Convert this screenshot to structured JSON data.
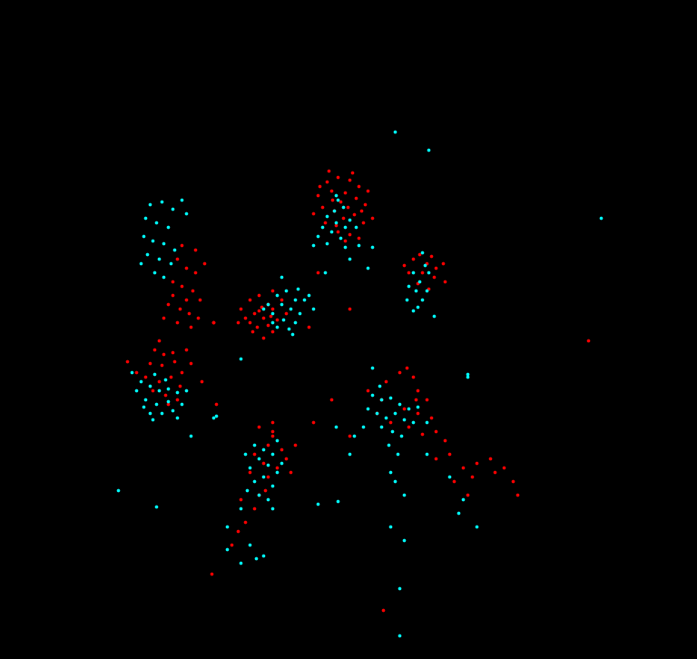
{
  "chart_data": {
    "type": "scatter",
    "tick_labels": false,
    "xlim": [
      0,
      768
    ],
    "ylim": [
      726,
      0
    ],
    "series": [
      {
        "color": "#ff0000",
        "marker": "o",
        "points": [
          [
            360,
            200
          ],
          [
            372,
            195
          ],
          [
            385,
            198
          ],
          [
            395,
            205
          ],
          [
            350,
            215
          ],
          [
            365,
            210
          ],
          [
            380,
            212
          ],
          [
            392,
            218
          ],
          [
            402,
            225
          ],
          [
            355,
            228
          ],
          [
            368,
            232
          ],
          [
            378,
            240
          ],
          [
            390,
            236
          ],
          [
            400,
            245
          ],
          [
            358,
            245
          ],
          [
            372,
            255
          ],
          [
            385,
            258
          ],
          [
            395,
            262
          ],
          [
            345,
            235
          ],
          [
            405,
            210
          ],
          [
            362,
            188
          ],
          [
            388,
            190
          ],
          [
            375,
            222
          ],
          [
            383,
            228
          ],
          [
            366,
            220
          ],
          [
            352,
            205
          ],
          [
            398,
            232
          ],
          [
            370,
            248
          ],
          [
            380,
            265
          ],
          [
            410,
            240
          ],
          [
            275,
            330
          ],
          [
            285,
            325
          ],
          [
            295,
            335
          ],
          [
            280,
            345
          ],
          [
            290,
            350
          ],
          [
            300,
            340
          ],
          [
            270,
            350
          ],
          [
            283,
            360
          ],
          [
            295,
            358
          ],
          [
            305,
            352
          ],
          [
            278,
            365
          ],
          [
            290,
            372
          ],
          [
            300,
            365
          ],
          [
            265,
            340
          ],
          [
            310,
            330
          ],
          [
            288,
            338
          ],
          [
            298,
            348
          ],
          [
            275,
            355
          ],
          [
            285,
            342
          ],
          [
            262,
            355
          ],
          [
            300,
            320
          ],
          [
            315,
            345
          ],
          [
            350,
            300
          ],
          [
            385,
            340
          ],
          [
            235,
            355
          ],
          [
            170,
            385
          ],
          [
            180,
            390
          ],
          [
            190,
            388
          ],
          [
            165,
            400
          ],
          [
            178,
            402
          ],
          [
            192,
            398
          ],
          [
            200,
            410
          ],
          [
            160,
            415
          ],
          [
            175,
            420
          ],
          [
            188,
            415
          ],
          [
            198,
            425
          ],
          [
            168,
            430
          ],
          [
            182,
            435
          ],
          [
            195,
            440
          ],
          [
            150,
            410
          ],
          [
            210,
            400
          ],
          [
            175,
            375
          ],
          [
            222,
            420
          ],
          [
            205,
            385
          ],
          [
            185,
            445
          ],
          [
            140,
            398
          ],
          [
            238,
            445
          ],
          [
            195,
            285
          ],
          [
            205,
            295
          ],
          [
            215,
            300
          ],
          [
            190,
            310
          ],
          [
            200,
            315
          ],
          [
            212,
            320
          ],
          [
            220,
            330
          ],
          [
            185,
            335
          ],
          [
            198,
            340
          ],
          [
            208,
            345
          ],
          [
            195,
            355
          ],
          [
            210,
            360
          ],
          [
            225,
            290
          ],
          [
            180,
            350
          ],
          [
            200,
            270
          ],
          [
            215,
            275
          ],
          [
            218,
            350
          ],
          [
            190,
            325
          ],
          [
            235,
            355
          ],
          [
            205,
            330
          ],
          [
            455,
            285
          ],
          [
            470,
            290
          ],
          [
            480,
            295
          ],
          [
            450,
            300
          ],
          [
            465,
            300
          ],
          [
            478,
            305
          ],
          [
            488,
            290
          ],
          [
            460,
            312
          ],
          [
            472,
            318
          ],
          [
            445,
            292
          ],
          [
            490,
            310
          ],
          [
            462,
            280
          ],
          [
            475,
            282
          ],
          [
            425,
            420
          ],
          [
            440,
            410
          ],
          [
            455,
            415
          ],
          [
            448,
            405
          ],
          [
            460,
            430
          ],
          [
            470,
            440
          ],
          [
            420,
            440
          ],
          [
            445,
            450
          ],
          [
            460,
            455
          ],
          [
            475,
            460
          ],
          [
            430,
            465
          ],
          [
            450,
            470
          ],
          [
            465,
            478
          ],
          [
            480,
            475
          ],
          [
            415,
            455
          ],
          [
            490,
            485
          ],
          [
            495,
            500
          ],
          [
            510,
            515
          ],
          [
            525,
            510
          ],
          [
            500,
            530
          ],
          [
            520,
            525
          ],
          [
            540,
            505
          ],
          [
            555,
            515
          ],
          [
            565,
            530
          ],
          [
            515,
            545
          ],
          [
            545,
            520
          ],
          [
            570,
            545
          ],
          [
            480,
            505
          ],
          [
            405,
            430
          ],
          [
            458,
            440
          ],
          [
            285,
            470
          ],
          [
            300,
            475
          ],
          [
            295,
            490
          ],
          [
            310,
            495
          ],
          [
            280,
            500
          ],
          [
            290,
            510
          ],
          [
            305,
            515
          ],
          [
            315,
            505
          ],
          [
            275,
            520
          ],
          [
            295,
            525
          ],
          [
            300,
            480
          ],
          [
            320,
            520
          ],
          [
            285,
            545
          ],
          [
            280,
            560
          ],
          [
            270,
            575
          ],
          [
            262,
            585
          ],
          [
            255,
            600
          ],
          [
            265,
            550
          ],
          [
            292,
            540
          ],
          [
            325,
            490
          ],
          [
            300,
            465
          ],
          [
            648,
            375
          ],
          [
            422,
            672
          ],
          [
            233,
            632
          ],
          [
            365,
            440
          ],
          [
            345,
            465
          ],
          [
            340,
            360
          ],
          [
            385,
            480
          ]
        ]
      },
      {
        "color": "#00ffff",
        "marker": "o",
        "points": [
          [
            360,
            238
          ],
          [
            370,
            245
          ],
          [
            380,
            250
          ],
          [
            365,
            255
          ],
          [
            375,
            262
          ],
          [
            385,
            242
          ],
          [
            355,
            250
          ],
          [
            392,
            250
          ],
          [
            368,
            232
          ],
          [
            378,
            228
          ],
          [
            372,
            220
          ],
          [
            350,
            260
          ],
          [
            395,
            270
          ],
          [
            360,
            268
          ],
          [
            380,
            272
          ],
          [
            410,
            272
          ],
          [
            385,
            285
          ],
          [
            370,
            215
          ],
          [
            358,
            300
          ],
          [
            405,
            295
          ],
          [
            305,
            325
          ],
          [
            315,
            320
          ],
          [
            325,
            330
          ],
          [
            310,
            335
          ],
          [
            320,
            340
          ],
          [
            330,
            345
          ],
          [
            300,
            345
          ],
          [
            312,
            352
          ],
          [
            325,
            355
          ],
          [
            335,
            330
          ],
          [
            318,
            362
          ],
          [
            305,
            360
          ],
          [
            340,
            325
          ],
          [
            295,
            335
          ],
          [
            328,
            318
          ],
          [
            322,
            368
          ],
          [
            345,
            340
          ],
          [
            300,
            355
          ],
          [
            310,
            305
          ],
          [
            290,
            340
          ],
          [
            155,
            420
          ],
          [
            165,
            425
          ],
          [
            175,
            430
          ],
          [
            185,
            428
          ],
          [
            195,
            432
          ],
          [
            160,
            440
          ],
          [
            172,
            445
          ],
          [
            185,
            442
          ],
          [
            200,
            445
          ],
          [
            165,
            455
          ],
          [
            178,
            455
          ],
          [
            190,
            452
          ],
          [
            150,
            430
          ],
          [
            205,
            430
          ],
          [
            170,
            412
          ],
          [
            182,
            418
          ],
          [
            158,
            448
          ],
          [
            195,
            460
          ],
          [
            145,
            410
          ],
          [
            168,
            462
          ],
          [
            210,
            480
          ],
          [
            235,
            460
          ],
          [
            165,
            225
          ],
          [
            178,
            222
          ],
          [
            190,
            230
          ],
          [
            160,
            240
          ],
          [
            172,
            245
          ],
          [
            185,
            250
          ],
          [
            158,
            260
          ],
          [
            168,
            265
          ],
          [
            180,
            268
          ],
          [
            192,
            275
          ],
          [
            162,
            280
          ],
          [
            175,
            285
          ],
          [
            188,
            290
          ],
          [
            170,
            300
          ],
          [
            200,
            220
          ],
          [
            205,
            235
          ],
          [
            155,
            290
          ],
          [
            180,
            305
          ],
          [
            455,
            300
          ],
          [
            462,
            310
          ],
          [
            458,
            320
          ],
          [
            470,
            320
          ],
          [
            450,
            315
          ],
          [
            465,
            330
          ],
          [
            460,
            338
          ],
          [
            448,
            330
          ],
          [
            472,
            300
          ],
          [
            465,
            278
          ],
          [
            455,
            342
          ],
          [
            478,
            348
          ],
          [
            468,
            292
          ],
          [
            410,
            435
          ],
          [
            420,
            440
          ],
          [
            430,
            438
          ],
          [
            440,
            445
          ],
          [
            450,
            450
          ],
          [
            415,
            455
          ],
          [
            425,
            460
          ],
          [
            435,
            455
          ],
          [
            445,
            462
          ],
          [
            455,
            465
          ],
          [
            420,
            470
          ],
          [
            432,
            475
          ],
          [
            442,
            480
          ],
          [
            428,
            490
          ],
          [
            438,
            500
          ],
          [
            405,
            450
          ],
          [
            460,
            448
          ],
          [
            470,
            465
          ],
          [
            418,
            425
          ],
          [
            400,
            470
          ],
          [
            390,
            480
          ],
          [
            435,
            530
          ],
          [
            445,
            545
          ],
          [
            430,
            520
          ],
          [
            470,
            500
          ],
          [
            495,
            525
          ],
          [
            510,
            550
          ],
          [
            525,
            580
          ],
          [
            505,
            565
          ],
          [
            445,
            595
          ],
          [
            430,
            580
          ],
          [
            515,
            415
          ],
          [
            410,
            405
          ],
          [
            385,
            500
          ],
          [
            370,
            470
          ],
          [
            280,
            490
          ],
          [
            290,
            495
          ],
          [
            300,
            500
          ],
          [
            285,
            505
          ],
          [
            295,
            512
          ],
          [
            305,
            520
          ],
          [
            275,
            515
          ],
          [
            290,
            525
          ],
          [
            300,
            535
          ],
          [
            280,
            530
          ],
          [
            270,
            500
          ],
          [
            310,
            510
          ],
          [
            285,
            545
          ],
          [
            295,
            550
          ],
          [
            272,
            540
          ],
          [
            305,
            485
          ],
          [
            265,
            560
          ],
          [
            250,
            580
          ],
          [
            275,
            600
          ],
          [
            290,
            612
          ],
          [
            265,
            620
          ],
          [
            282,
            615
          ],
          [
            300,
            560
          ],
          [
            250,
            605
          ],
          [
            435,
            145
          ],
          [
            472,
            165
          ],
          [
            662,
            240
          ],
          [
            130,
            540
          ],
          [
            172,
            558
          ],
          [
            440,
            700
          ],
          [
            440,
            648
          ],
          [
            265,
            395
          ],
          [
            350,
            555
          ],
          [
            372,
            552
          ],
          [
            515,
            412
          ],
          [
            238,
            458
          ],
          [
            345,
            270
          ]
        ]
      }
    ]
  }
}
